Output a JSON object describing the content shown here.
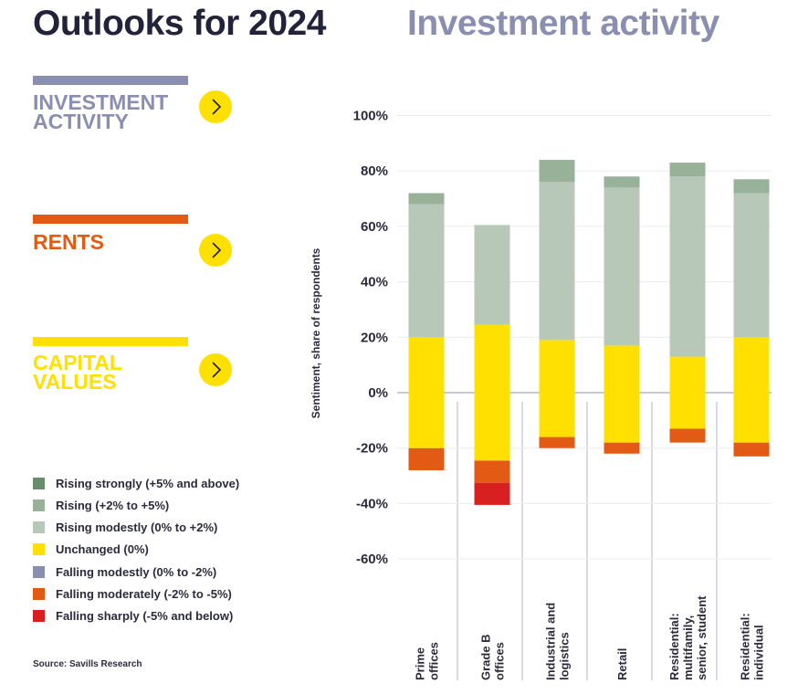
{
  "header": {
    "title": "Outlooks for 2024",
    "subtitle": "Investment activity"
  },
  "nav": [
    {
      "label": "INVESTMENT\nACTIVITY",
      "color": "#8a8fb2"
    },
    {
      "label": "RENTS",
      "color": "#e35a14"
    },
    {
      "label": "CAPITAL\nVALUES",
      "color": "#ffe000"
    }
  ],
  "legend": [
    {
      "label": "Rising strongly (+5% and above)",
      "color": "#6a8d6e"
    },
    {
      "label": "Rising (+2% to +5%)",
      "color": "#98b29a"
    },
    {
      "label": "Rising modestly (0% to +2%)",
      "color": "#b7c7b8"
    },
    {
      "label": "Unchanged (0%)",
      "color": "#ffe000"
    },
    {
      "label": "Falling modestly (0% to -2%)",
      "color": "#8a8fb2"
    },
    {
      "label": "Falling moderately (-2% to -5%)",
      "color": "#e35a14"
    },
    {
      "label": "Falling sharply (-5% and below)",
      "color": "#d7201f"
    }
  ],
  "source": "Source: Savills Research",
  "chart_data": {
    "type": "bar",
    "stacked": true,
    "ylabel": "Sentiment, share of respondents",
    "ylim": [
      -60,
      100
    ],
    "yticks": [
      "100%",
      "80%",
      "60%",
      "40%",
      "20%",
      "0%",
      "-20%",
      "-40%",
      "-60%"
    ],
    "ytick_values": [
      100,
      80,
      60,
      40,
      20,
      0,
      -20,
      -40,
      -60
    ],
    "grid": true,
    "categories": [
      [
        "Prime",
        "offices"
      ],
      [
        "Grade B",
        "offices"
      ],
      [
        "Industrial and",
        "logistics"
      ],
      [
        "Retail"
      ],
      [
        "Residential:",
        "multifamily,",
        "senior, student"
      ],
      [
        "Residential:",
        "individual"
      ]
    ],
    "series": [
      {
        "name": "Falling sharply (-5% and below)",
        "color": "#d7201f",
        "values": [
          0,
          -8,
          0,
          0,
          0,
          0
        ]
      },
      {
        "name": "Falling moderately (-2% to -5%)",
        "color": "#e35a14",
        "values": [
          -8,
          -8,
          -4,
          -4,
          -5,
          -5
        ]
      },
      {
        "name": "Unchanged (0%)",
        "color": "#ffe000",
        "values": [
          40,
          49,
          35,
          35,
          26,
          38
        ]
      },
      {
        "name": "Rising modestly (0% to +2%)",
        "color": "#b7c7b8",
        "values": [
          48,
          36,
          57,
          57,
          65,
          52
        ]
      },
      {
        "name": "Rising (+2% to +5%)",
        "color": "#98b29a",
        "values": [
          4,
          0,
          8,
          4,
          5,
          5
        ]
      }
    ],
    "bar_bottoms": [
      -28,
      -40.5,
      -20,
      -22,
      -18,
      -23
    ]
  }
}
